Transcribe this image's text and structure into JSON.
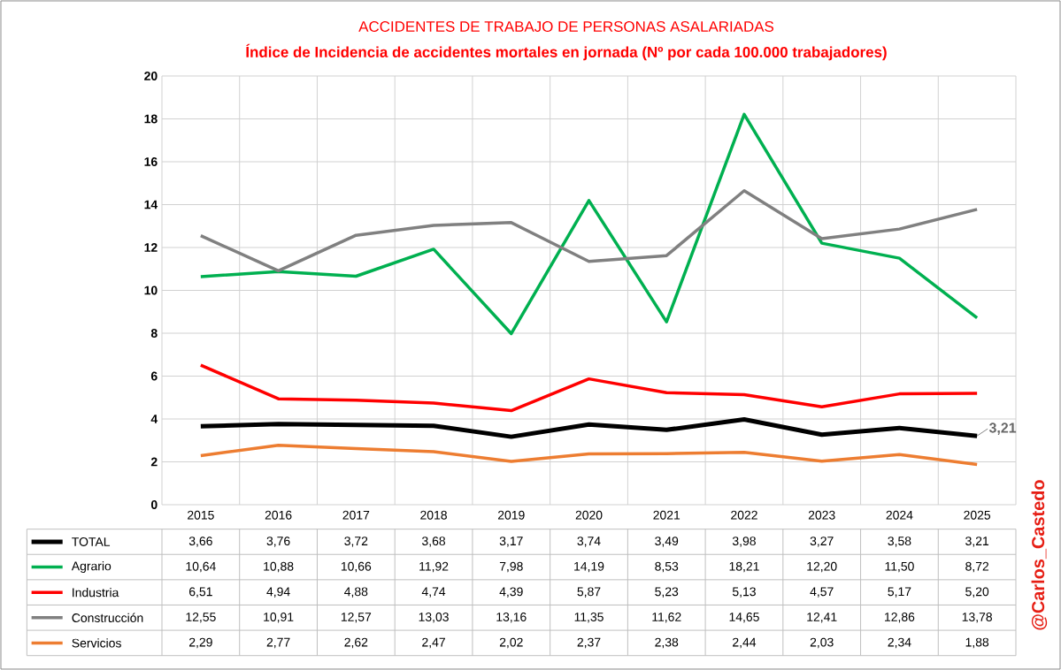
{
  "chart_data": {
    "type": "line",
    "title": "ACCIDENTES DE TRABAJO DE PERSONAS ASALARIADAS",
    "subtitle": "Índice de Incidencia de accidentes mortales en jornada (Nº por cada 100.000 trabajadores)",
    "categories": [
      "2015",
      "2016",
      "2017",
      "2018",
      "2019",
      "2020",
      "2021",
      "2022",
      "2023",
      "2024",
      "2025"
    ],
    "ylim": [
      0,
      20
    ],
    "yticks": [
      0,
      2,
      4,
      6,
      8,
      10,
      12,
      14,
      16,
      18,
      20
    ],
    "grid": true,
    "legend": "bottom",
    "series": [
      {
        "name": "TOTAL",
        "color": "#000000",
        "values": [
          3.66,
          3.76,
          3.72,
          3.68,
          3.17,
          3.74,
          3.49,
          3.98,
          3.27,
          3.58,
          3.21
        ],
        "value_labels": [
          "3,66",
          "3,76",
          "3,72",
          "3,68",
          "3,17",
          "3,74",
          "3,49",
          "3,98",
          "3,27",
          "3,58",
          "3,21"
        ]
      },
      {
        "name": "Agrario",
        "color": "#00b050",
        "values": [
          10.64,
          10.88,
          10.66,
          11.92,
          7.98,
          14.19,
          8.53,
          18.21,
          12.2,
          11.5,
          8.72
        ],
        "value_labels": [
          "10,64",
          "10,88",
          "10,66",
          "11,92",
          "7,98",
          "14,19",
          "8,53",
          "18,21",
          "12,20",
          "11,50",
          "8,72"
        ]
      },
      {
        "name": "Industria",
        "color": "#ff0000",
        "values": [
          6.51,
          4.94,
          4.88,
          4.74,
          4.39,
          5.87,
          5.23,
          5.13,
          4.57,
          5.17,
          5.2
        ],
        "value_labels": [
          "6,51",
          "4,94",
          "4,88",
          "4,74",
          "4,39",
          "5,87",
          "5,23",
          "5,13",
          "4,57",
          "5,17",
          "5,20"
        ]
      },
      {
        "name": "Construcción",
        "color": "#808080",
        "values": [
          12.55,
          10.91,
          12.57,
          13.03,
          13.16,
          11.35,
          11.62,
          14.65,
          12.41,
          12.86,
          13.78
        ],
        "value_labels": [
          "12,55",
          "10,91",
          "12,57",
          "13,03",
          "13,16",
          "11,35",
          "11,62",
          "14,65",
          "12,41",
          "12,86",
          "13,78"
        ]
      },
      {
        "name": "Servicios",
        "color": "#ed7d31",
        "values": [
          2.29,
          2.77,
          2.62,
          2.47,
          2.02,
          2.37,
          2.38,
          2.44,
          2.03,
          2.34,
          1.88
        ],
        "value_labels": [
          "2,29",
          "2,77",
          "2,62",
          "2,47",
          "2,02",
          "2,37",
          "2,38",
          "2,44",
          "2,03",
          "2,34",
          "1,88"
        ]
      }
    ],
    "annotations": [
      {
        "text": "3,21",
        "x": "2025",
        "y": 3.21
      },
      "@Carlos_Castedo"
    ]
  }
}
